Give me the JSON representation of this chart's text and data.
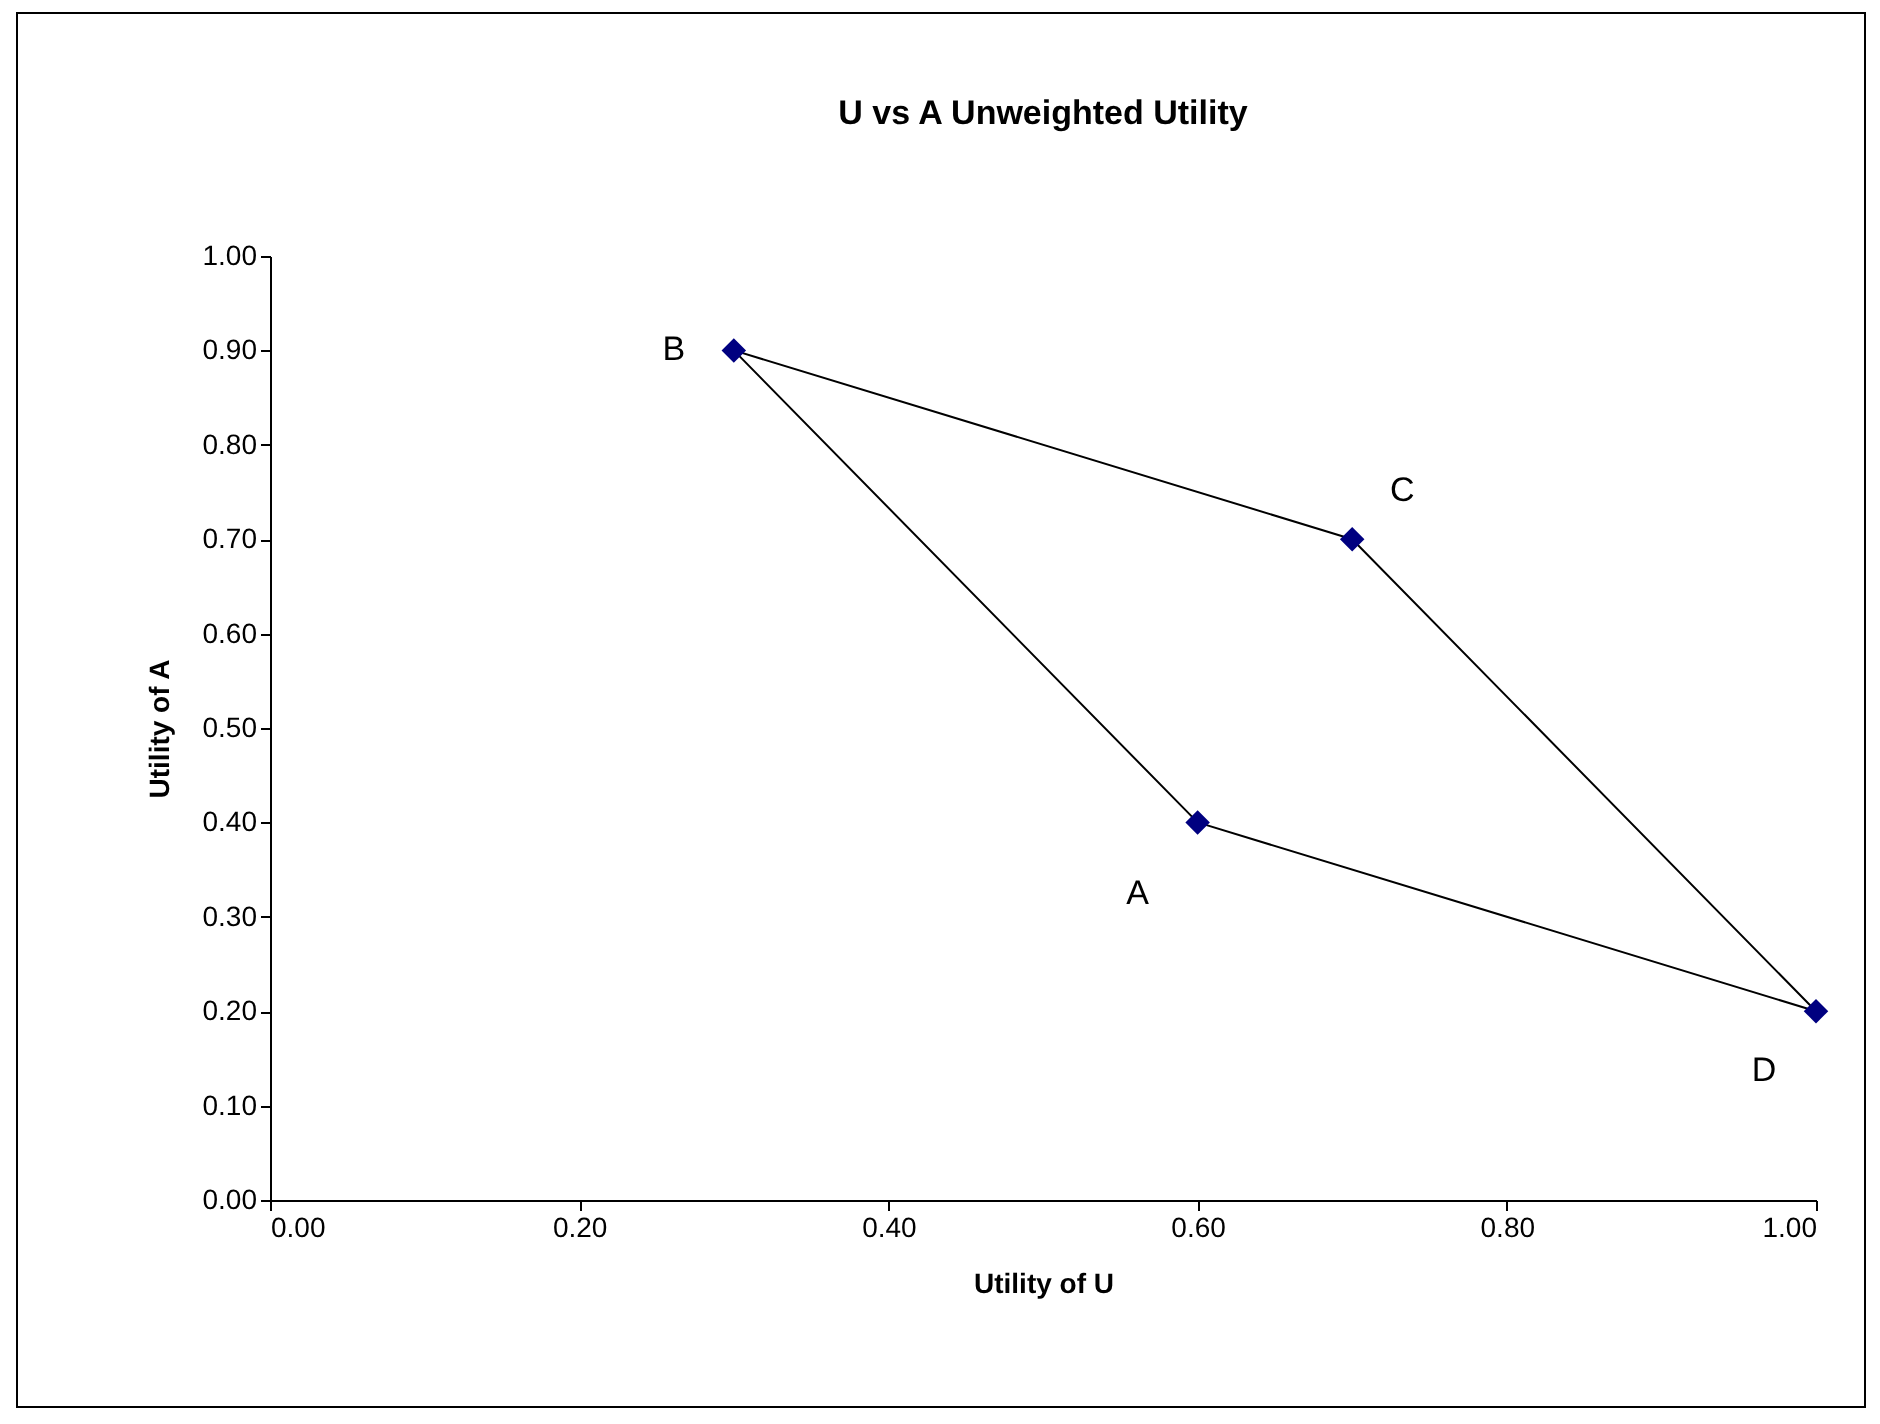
{
  "chart_data": {
    "type": "line",
    "title": "U vs A Unweighted Utility",
    "xlabel": "Utility of U",
    "ylabel": "Utility of A",
    "xlim": [
      0,
      1
    ],
    "ylim": [
      0,
      1
    ],
    "xticks": [
      {
        "value": 0,
        "label": "0.00"
      },
      {
        "value": 0.2,
        "label": "0.20"
      },
      {
        "value": 0.4,
        "label": "0.40"
      },
      {
        "value": 0.6,
        "label": "0.60"
      },
      {
        "value": 0.8,
        "label": "0.80"
      },
      {
        "value": 1,
        "label": "1.00"
      }
    ],
    "yticks": [
      {
        "value": 0,
        "label": "0.00"
      },
      {
        "value": 0.1,
        "label": "0.10"
      },
      {
        "value": 0.2,
        "label": "0.20"
      },
      {
        "value": 0.3,
        "label": "0.30"
      },
      {
        "value": 0.4,
        "label": "0.40"
      },
      {
        "value": 0.5,
        "label": "0.50"
      },
      {
        "value": 0.6,
        "label": "0.60"
      },
      {
        "value": 0.7,
        "label": "0.70"
      },
      {
        "value": 0.8,
        "label": "0.80"
      },
      {
        "value": 0.9,
        "label": "0.90"
      },
      {
        "value": 1,
        "label": "1.00"
      }
    ],
    "grid": false,
    "series": [
      {
        "type": "line",
        "color": "#000000",
        "marker": "none",
        "x": [
          0.3,
          0.6,
          1.0
        ],
        "values": [
          0.9,
          0.4,
          0.2
        ]
      },
      {
        "type": "line",
        "color": "#000000",
        "marker": "none",
        "x": [
          0.3,
          0.7,
          1.0
        ],
        "values": [
          0.9,
          0.7,
          0.2
        ]
      },
      {
        "type": "scatter",
        "color": "#000080",
        "marker": "diamond",
        "x": [
          0.6,
          0.3,
          0.7,
          1.0
        ],
        "values": [
          0.4,
          0.9,
          0.7,
          0.2
        ]
      }
    ],
    "annotations": [
      {
        "text": "A",
        "x": 0.6,
        "y": 0.4
      },
      {
        "text": "B",
        "x": 0.3,
        "y": 0.9
      },
      {
        "text": "C",
        "x": 0.7,
        "y": 0.7
      },
      {
        "text": "D",
        "x": 1.0,
        "y": 0.2
      }
    ]
  }
}
